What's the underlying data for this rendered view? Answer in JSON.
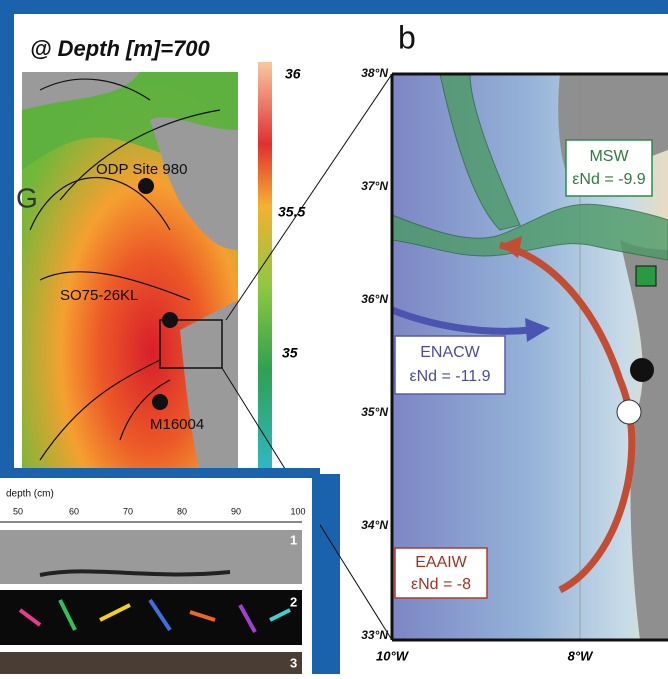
{
  "left_panel": {
    "title": "@ Depth [m]=700",
    "partial_label": "G",
    "colorbar_ticks": [
      "36",
      "35.5",
      "35"
    ],
    "sites": [
      "ODP Site 980",
      "SO75-26KL",
      "M16004"
    ]
  },
  "right_panel": {
    "label": "b",
    "lat_labels": [
      "38°N",
      "37°N",
      "36°N",
      "35°N",
      "34°N",
      "33°N"
    ],
    "lon_labels": [
      "10°W",
      "8°W"
    ],
    "water_masses": [
      {
        "name": "MSW",
        "end": "εNd = -9.9"
      },
      {
        "name": "ENACW",
        "end": "εNd = -11.9"
      },
      {
        "name": "EAAIW",
        "end": "εNd = -8"
      }
    ]
  },
  "inset": {
    "axis_label": "depth (cm)",
    "ticks": [
      "50",
      "60",
      "70",
      "80",
      "90",
      "100"
    ],
    "strips": [
      "1",
      "2",
      "3"
    ]
  }
}
